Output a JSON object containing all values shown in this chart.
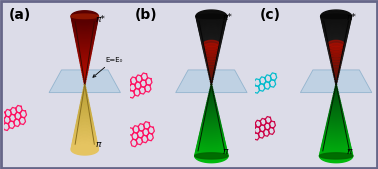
{
  "bg_color": "#ffffff",
  "outer_bg": "#dcdce8",
  "border_color": "#666688",
  "panel_labels": [
    "(a)",
    "(b)",
    "(c)"
  ],
  "pi_label": "π",
  "pi_star_label": "π*",
  "e_label": "E=E₀",
  "graphene_pink": "#FF1060",
  "graphene_cyan": "#00BBCC",
  "graphene_darkpink": "#CC0044",
  "plane_color": "#a8c8e0",
  "plane_alpha": 0.55
}
